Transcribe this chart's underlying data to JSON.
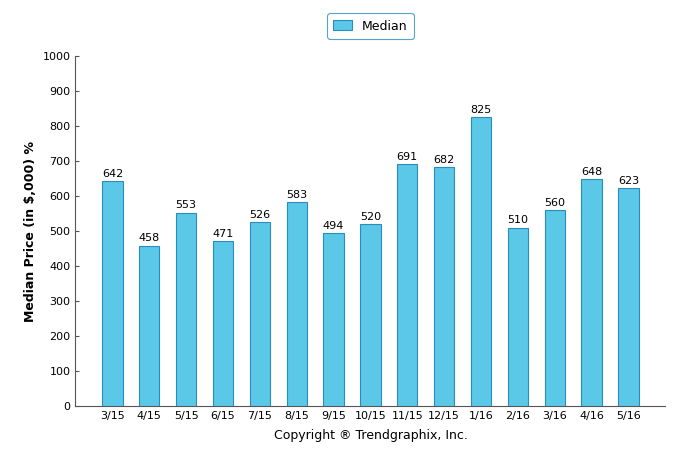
{
  "categories": [
    "3/15",
    "4/15",
    "5/15",
    "6/15",
    "7/15",
    "8/15",
    "9/15",
    "10/15",
    "11/15",
    "12/15",
    "1/16",
    "2/16",
    "3/16",
    "4/16",
    "5/16"
  ],
  "values": [
    642,
    458,
    553,
    471,
    526,
    583,
    494,
    520,
    691,
    682,
    825,
    510,
    560,
    648,
    623
  ],
  "bar_color": "#5BC8E8",
  "bar_edge_color": "#2a8bbf",
  "ylabel": "Median Price (in $,000) %",
  "xlabel": "Copyright ® Trendgraphix, Inc.",
  "ylim": [
    0,
    1000
  ],
  "yticks": [
    0,
    100,
    200,
    300,
    400,
    500,
    600,
    700,
    800,
    900,
    1000
  ],
  "legend_label": "Median",
  "legend_edge_color": "#2a8bbf",
  "label_fontsize": 9,
  "tick_fontsize": 8,
  "bar_label_fontsize": 8,
  "background_color": "#ffffff",
  "spine_color": "#555555"
}
